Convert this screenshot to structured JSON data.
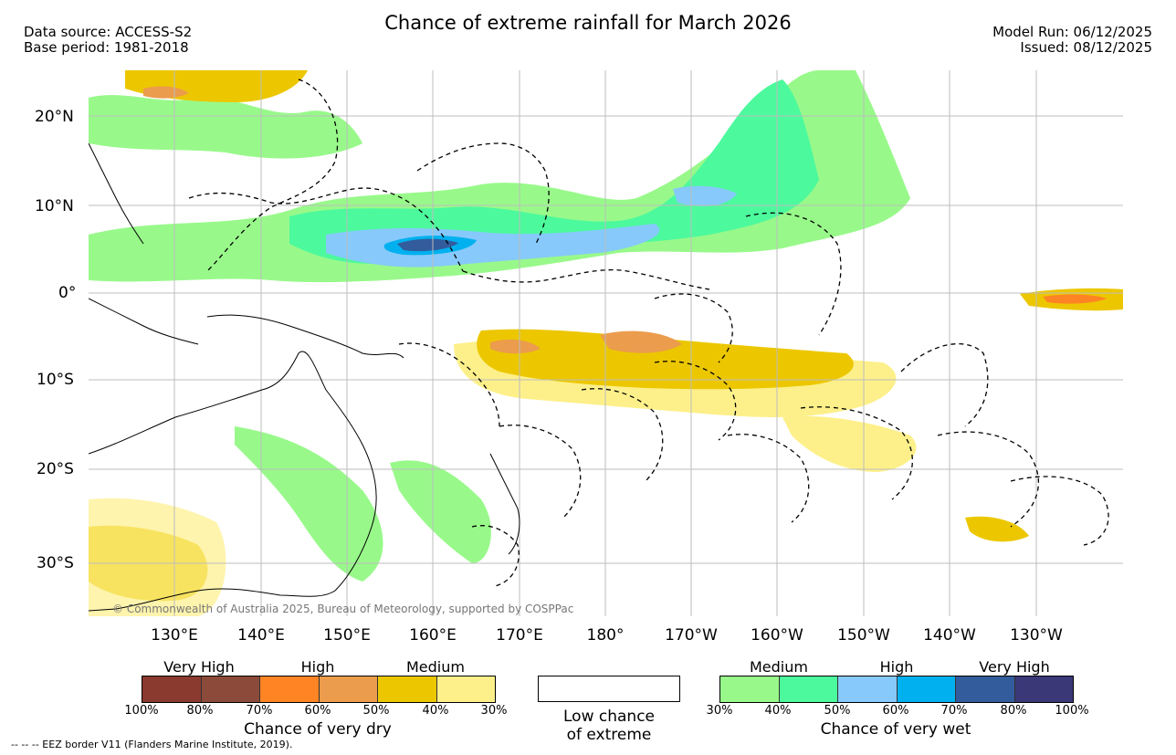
{
  "header": {
    "title": "Chance of extreme rainfall for March 2026",
    "data_source": "Data source: ACCESS-S2",
    "base_period": "Base period: 1981-2018",
    "model_run": "Model Run: 06/12/2025",
    "issued": "Issued: 08/12/2025"
  },
  "map": {
    "lat_labels": [
      "20°N",
      "10°N",
      "0°",
      "10°S",
      "20°S",
      "30°S"
    ],
    "lon_labels": [
      "130°E",
      "140°E",
      "150°E",
      "160°E",
      "170°E",
      "180°",
      "170°W",
      "160°W",
      "150°W",
      "140°W",
      "130°W"
    ],
    "copyright": "© Commonwealth of Australia 2025, Bureau of Meteorology, supported by COSPPac"
  },
  "legend_dry": {
    "headers": [
      "Very High",
      "High",
      "Medium"
    ],
    "ticks": [
      "100%",
      "80%",
      "70%",
      "60%",
      "50%",
      "40%",
      "30%"
    ],
    "colors": [
      "#8b3a2f",
      "#8c4b3a",
      "#ff8424",
      "#eb9c4c",
      "#ecc700",
      "#fdf08a"
    ],
    "caption": "Chance of very dry"
  },
  "legend_low": {
    "line1": "Low chance",
    "line2": "of extreme"
  },
  "legend_wet": {
    "headers": [
      "Medium",
      "High",
      "Very High"
    ],
    "ticks": [
      "30%",
      "40%",
      "50%",
      "60%",
      "70%",
      "80%",
      "100%"
    ],
    "colors": [
      "#98f98a",
      "#4cf99d",
      "#86c9fa",
      "#00b0ef",
      "#325c9c",
      "#3b3877"
    ],
    "caption": "Chance of very wet"
  },
  "footnote": "-- -- -- EEZ border V11 (Flanders Marine Institute, 2019)."
}
